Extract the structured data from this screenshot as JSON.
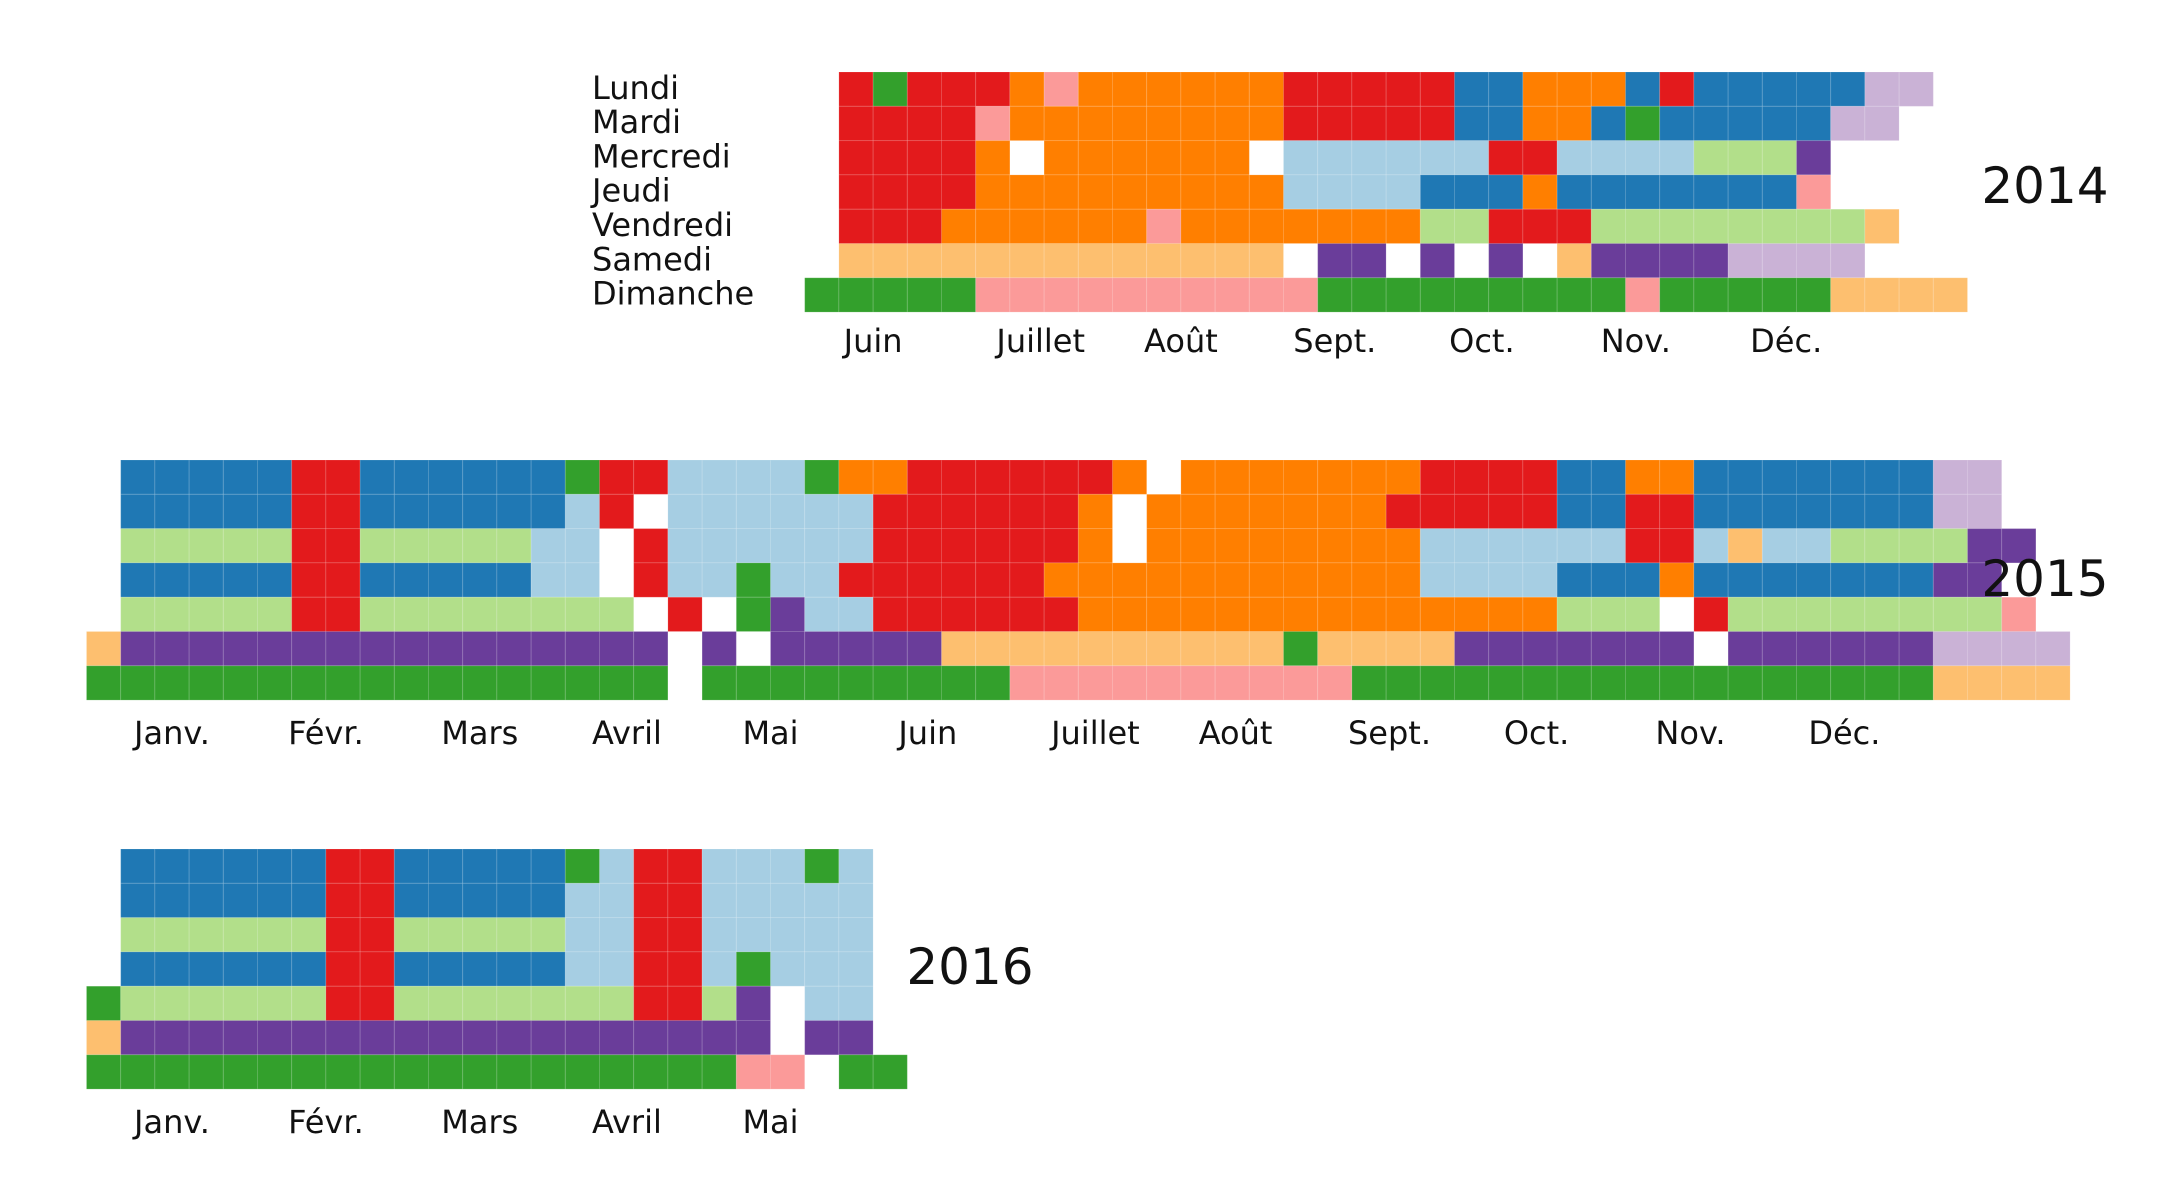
{
  "chart_data": {
    "type": "heatmap",
    "day_labels": [
      "Lundi",
      "Mardi",
      "Mercredi",
      "Jeudi",
      "Vendredi",
      "Samedi",
      "Dimanche"
    ],
    "palette": {
      "a": "#1f78b4",
      "b": "#a6cee3",
      "c": "#33a02c",
      "d": "#b2df8a",
      "e": "#e31a1c",
      "f": "#fb9a99",
      "g": "#ff7f00",
      "h": "#fdbf6f",
      "i": "#6a3d9a",
      "j": "#cab2d6"
    },
    "years": [
      {
        "year": "2014",
        "first_week": 21,
        "months": [
          {
            "label": "Juin",
            "week": 23
          },
          {
            "label": "Juillet",
            "week": 27.9
          },
          {
            "label": "Août",
            "week": 32
          },
          {
            "label": "Sept.",
            "week": 36.5
          },
          {
            "label": "Oct.",
            "week": 40.8
          },
          {
            "label": "Nov.",
            "week": 45.3
          },
          {
            "label": "Déc.",
            "week": 49.7
          }
        ],
        "rows": [
          ".eceeegfggggggeeeeeaagggaeaaaaajj",
          ".eeeefggggggggeeeeeaaggacaaaaajj",
          ".eeeeg.gggggg.bbbbbbeebbbbdddi",
          ".eeeegggggggggbbbbaaagaaaaaaaf",
          ".eeeggggggfgggggggddeeeddddddddh",
          ".hhhhhhhhhhhhh.ii.i.i.hiiiijjjj",
          "cccccffffffffffcccccccccfccccchhhh"
        ]
      },
      {
        "year": "2015",
        "first_week": 0,
        "months": [
          {
            "label": "Janv.",
            "week": 2.5
          },
          {
            "label": "Févr.",
            "week": 7
          },
          {
            "label": "Mars",
            "week": 11.5
          },
          {
            "label": "Avril",
            "week": 15.8
          },
          {
            "label": "Mai",
            "week": 20
          },
          {
            "label": "Juin",
            "week": 24.6
          },
          {
            "label": "Juillet",
            "week": 29.5
          },
          {
            "label": "Août",
            "week": 33.6
          },
          {
            "label": "Sept.",
            "week": 38.1
          },
          {
            "label": "Oct.",
            "week": 42.4
          },
          {
            "label": "Nov.",
            "week": 46.9
          },
          {
            "label": "Déc.",
            "week": 51.4
          }
        ],
        "rows": [
          ".aaaaaeeaaaaaaceebbbbcggeeeeeeg.gggggggeeeeaaggaaaaaaajj",
          ".aaaaaeeaaaaaabe.bbbbbbeeeeeeg.gggggggeeeeeaaeeaaaaaaajj",
          ".dddddeedddddbb.ebbbbbbeeeeeeg.ggggggggbbbbbbeebhbbddddii",
          ".aaaaaeeaaaaabb.ebbcbbeeeeeegggggggggggbbbbaaagaaaaaaaii",
          ".dddddeedddddddd.e.cibbeeeeeeggggggggggggggddd.eddddddddf",
          "hiiiiiiiiiiiiiiii.i.iiiiihhhhhhhhhhchhhhiiiiiii.iiiiiijjjj",
          "ccccccccccccccccc.cccccccccffffffffffccccccccccccccccchhhh"
        ]
      },
      {
        "year": "2016",
        "first_week": 0,
        "months": [
          {
            "label": "Janv.",
            "week": 2.5
          },
          {
            "label": "Févr.",
            "week": 7
          },
          {
            "label": "Mars",
            "week": 11.5
          },
          {
            "label": "Avril",
            "week": 15.8
          },
          {
            "label": "Mai",
            "week": 20
          }
        ],
        "rows": [
          ".aaaaaaeeaaaaacbeebbbcb",
          ".aaaaaaeeaaaaabbeebbbbb",
          ".ddddddeedddddbbeebbbbb",
          ".aaaaaaeeaaaaabbeebcbbb",
          "cddddddeedddddddeedi.bb",
          "hiiiiiiiiiiiiiiiiiii.ii",
          "cccccccccccccccccccff.cc"
        ]
      }
    ]
  }
}
